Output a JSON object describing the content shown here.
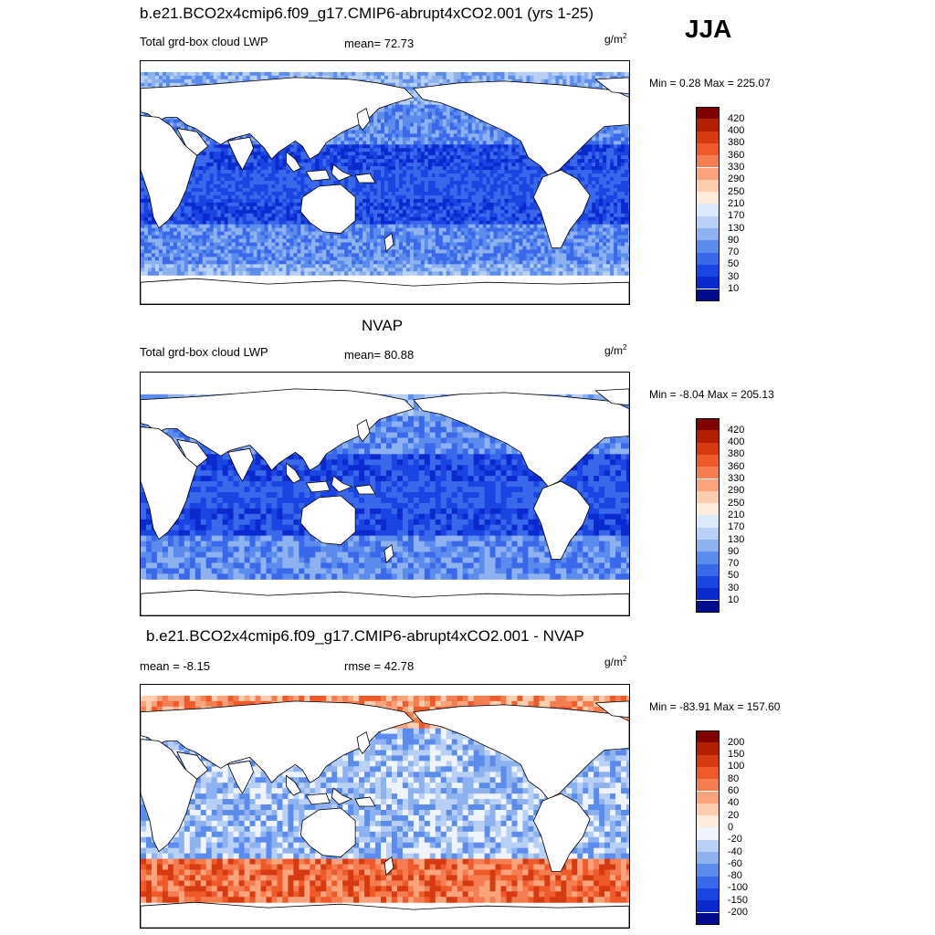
{
  "season": "JJA",
  "panels": [
    {
      "id": "model",
      "title": "b.e21.BCO2x4cmip6.f09_g17.CMIP6-abrupt4xCO2.001 (yrs 1-25)",
      "left_label": "Total grd-box cloud LWP",
      "stat_label": "mean=  72.73",
      "unit_base": "g/m",
      "unit_exp": "2",
      "minmax": "Min =   0.28 Max = 225.07",
      "colorbar": {
        "labels": [
          "420",
          "400",
          "380",
          "360",
          "330",
          "290",
          "250",
          "210",
          "170",
          "130",
          "90",
          "70",
          "50",
          "30",
          "10"
        ],
        "colors": [
          "#7f0000",
          "#b22000",
          "#d63a10",
          "#ef5a2a",
          "#f47d52",
          "#f9a47d",
          "#fccdae",
          "#fdebdc",
          "#dbe9fb",
          "#b9d0f6",
          "#8eb2f0",
          "#5b8ced",
          "#3a68ea",
          "#1b45e2",
          "#0a2ad0",
          "#000c8c"
        ]
      },
      "map": {
        "type": "model_lwp"
      }
    },
    {
      "id": "obs",
      "title": "NVAP",
      "left_label": "Total grd-box cloud LWP",
      "stat_label": "mean=  80.88",
      "unit_base": "g/m",
      "unit_exp": "2",
      "minmax": "Min =  -8.04 Max = 205.13",
      "colorbar": {
        "labels": [
          "420",
          "400",
          "380",
          "360",
          "330",
          "290",
          "250",
          "210",
          "170",
          "130",
          "90",
          "70",
          "50",
          "30",
          "10"
        ],
        "colors": [
          "#7f0000",
          "#b22000",
          "#d63a10",
          "#ef5a2a",
          "#f47d52",
          "#f9a47d",
          "#fccdae",
          "#fdebdc",
          "#dbe9fb",
          "#b9d0f6",
          "#8eb2f0",
          "#5b8ced",
          "#3a68ea",
          "#1b45e2",
          "#0a2ad0",
          "#000c8c"
        ]
      },
      "map": {
        "type": "obs_lwp"
      }
    },
    {
      "id": "diff",
      "title": "b.e21.BCO2x4cmip6.f09_g17.CMIP6-abrupt4xCO2.001 - NVAP",
      "left_label": "mean =  -8.15",
      "stat_label": "rmse =  42.78",
      "unit_base": "g/m",
      "unit_exp": "2",
      "minmax": "Min = -83.91 Max = 157.60",
      "colorbar": {
        "labels": [
          "200",
          "150",
          "100",
          "80",
          "60",
          "40",
          "20",
          "0",
          "-20",
          "-40",
          "-60",
          "-80",
          "-100",
          "-150",
          "-200"
        ],
        "colors": [
          "#7f0000",
          "#b22000",
          "#d63a10",
          "#ef5a2a",
          "#f47d52",
          "#f9a47d",
          "#fccdae",
          "#fdebdc",
          "#eef3fd",
          "#b9d0f6",
          "#8eb2f0",
          "#5b8ced",
          "#3a68ea",
          "#1b45e2",
          "#0a2ad0",
          "#000c8c"
        ]
      },
      "map": {
        "type": "difference"
      }
    }
  ]
}
